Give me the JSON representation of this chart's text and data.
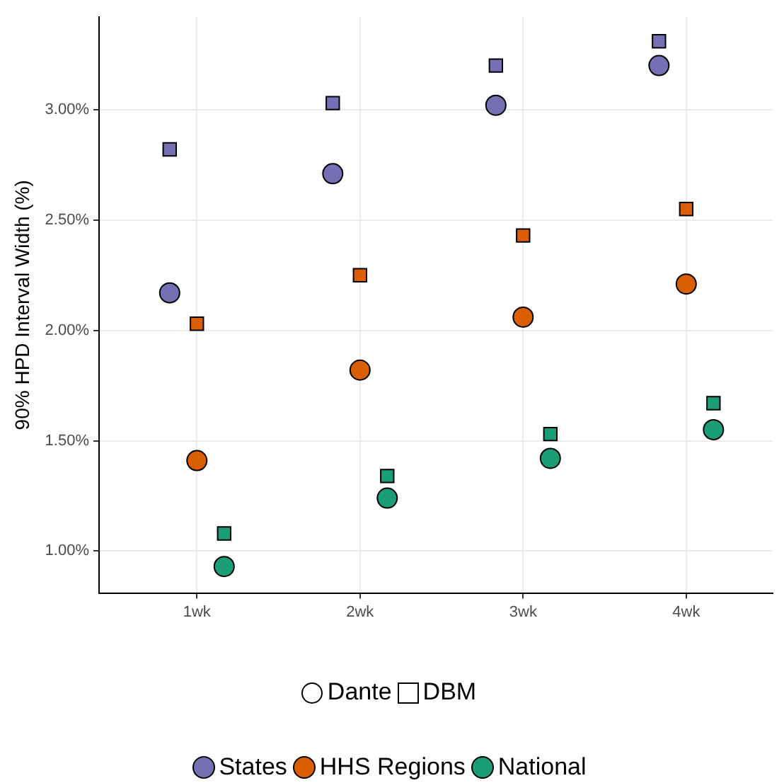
{
  "chart_data": {
    "type": "scatter",
    "ylabel": "90% HPD Interval Width (%)",
    "categories": [
      "1wk",
      "2wk",
      "3wk",
      "4wk"
    ],
    "ylim": [
      0.81,
      3.42
    ],
    "yticks": [
      {
        "value": 1.0,
        "label": "1.00%"
      },
      {
        "value": 1.5,
        "label": "1.50%"
      },
      {
        "value": 2.0,
        "label": "2.00%"
      },
      {
        "value": 2.5,
        "label": "2.50%"
      },
      {
        "value": 3.0,
        "label": "3.00%"
      }
    ],
    "grid": true,
    "legend": "bottom",
    "annotations": [
      "Dante",
      "DBM"
    ],
    "series": [
      {
        "name": "States",
        "marker": "circle",
        "color": "#7570b3",
        "values": [
          2.17,
          2.71,
          3.02,
          3.2
        ]
      },
      {
        "marker": "square",
        "color": "#7570b3",
        "values": [
          2.82,
          3.03,
          3.2,
          3.31
        ]
      },
      {
        "name": "HHS Regions",
        "marker": "circle",
        "color": "#d95f02",
        "values": [
          1.41,
          1.82,
          2.06,
          2.21
        ]
      },
      {
        "marker": "square",
        "color": "#d95f02",
        "values": [
          2.03,
          2.25,
          2.43,
          2.55
        ]
      },
      {
        "name": "National",
        "marker": "circle",
        "color": "#1b9e77",
        "values": [
          0.93,
          1.24,
          1.42,
          1.55
        ]
      },
      {
        "marker": "square",
        "color": "#1b9e77",
        "values": [
          1.08,
          1.34,
          1.53,
          1.67
        ]
      }
    ]
  }
}
